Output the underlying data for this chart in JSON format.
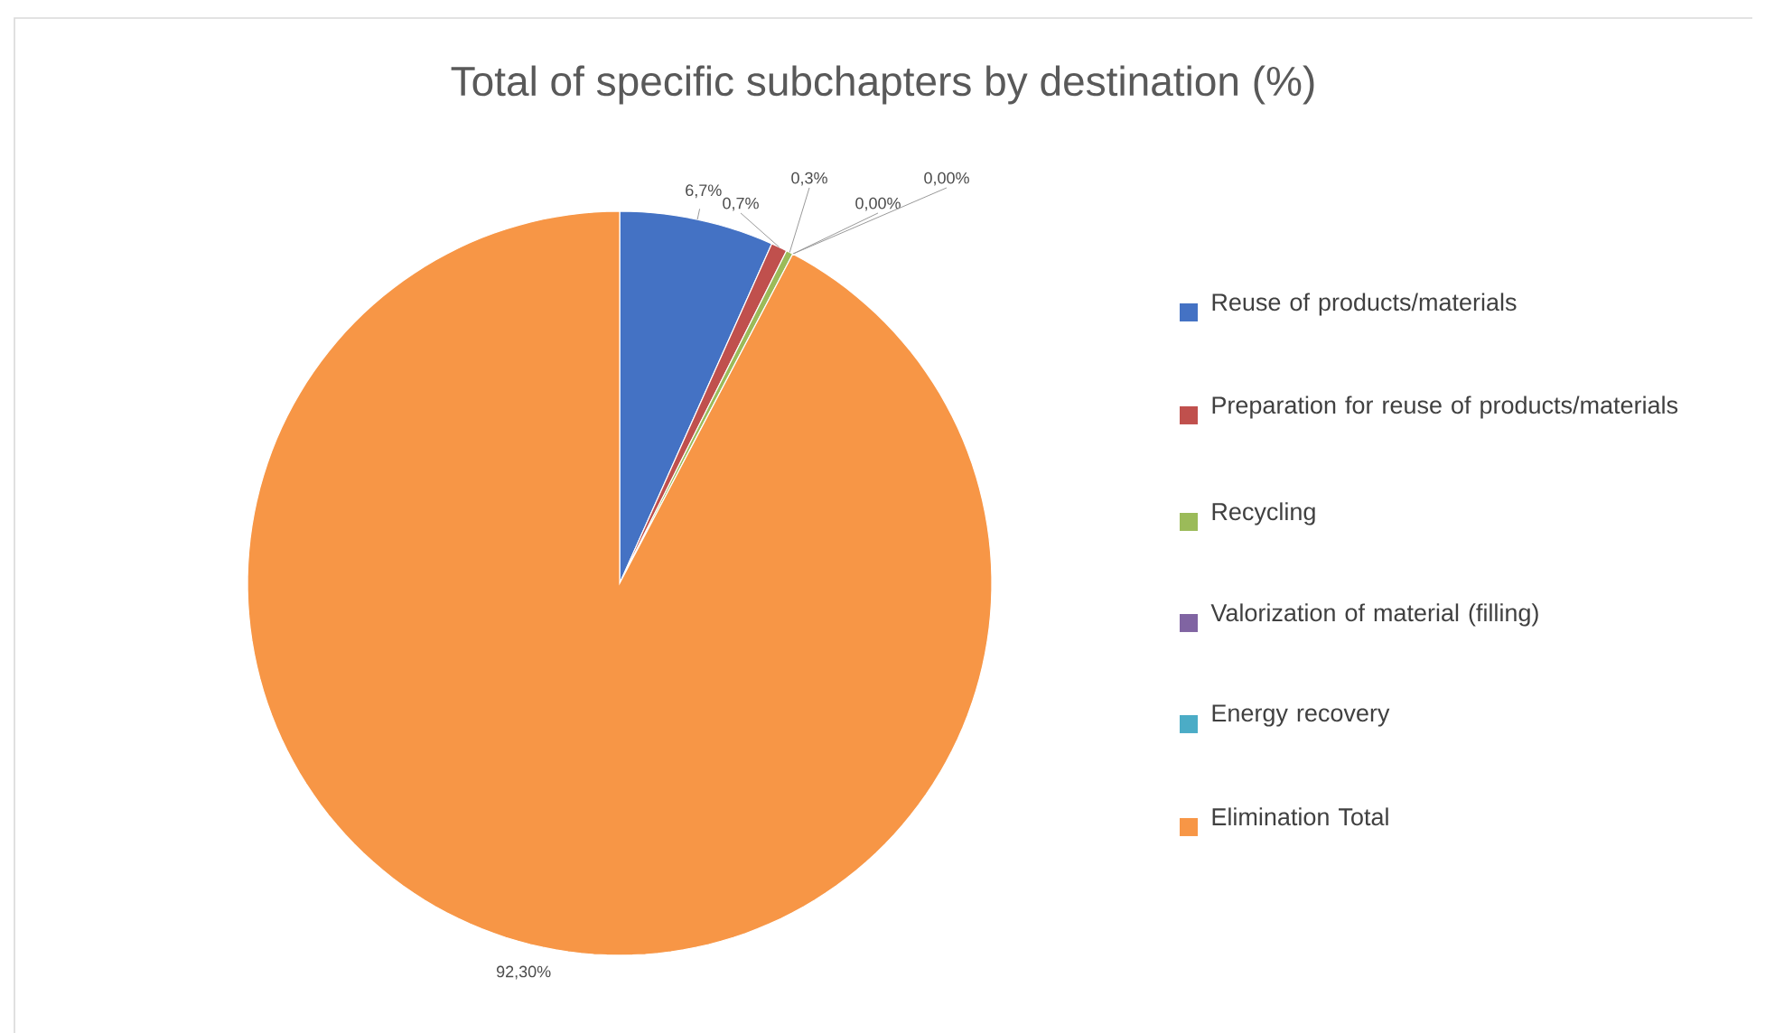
{
  "chart_data": {
    "type": "pie",
    "title": "Total of specific subchapters by destination (%)",
    "categories": [
      "Reuse of products/materials",
      "Preparation for reuse of products/materials",
      "Recycling",
      "Valorization of material (filling)",
      "Energy recovery",
      "Elimination Total"
    ],
    "values": [
      6.7,
      0.7,
      0.3,
      0,
      0,
      92.3
    ],
    "value_labels": [
      "6,7%",
      "0,7%",
      "0,3%",
      "0,00%",
      "0,00%",
      "92,30%"
    ],
    "colors": [
      "#4472c4",
      "#c0504d",
      "#9bbb59",
      "#8064a2",
      "#4bacc6",
      "#f79646"
    ],
    "legend": "right"
  }
}
